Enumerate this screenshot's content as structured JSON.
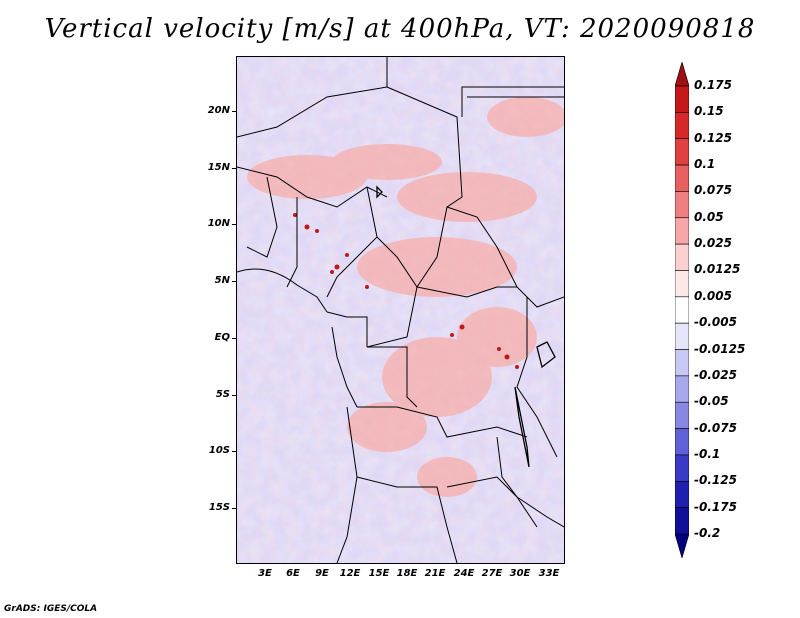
{
  "title": "Vertical velocity [m/s] at 400hPa, VT: 2020090818",
  "footer": "GrADS: IGES/COLA",
  "y_axis_labels": [
    "20N",
    "15N",
    "10N",
    "5N",
    "EQ",
    "5S",
    "10S",
    "15S"
  ],
  "x_axis_labels": [
    "3E",
    "6E",
    "9E",
    "12E",
    "15E",
    "18E",
    "21E",
    "24E",
    "27E",
    "30E",
    "33E"
  ],
  "colorbar": {
    "labels": [
      "0.175",
      "0.15",
      "0.125",
      "0.1",
      "0.075",
      "0.05",
      "0.025",
      "0.0125",
      "0.005",
      "-0.005",
      "-0.0125",
      "-0.025",
      "-0.05",
      "-0.075",
      "-0.1",
      "-0.125",
      "-0.175",
      "-0.2"
    ],
    "colors": [
      "#a01010",
      "#c41818",
      "#d62828",
      "#e04040",
      "#e86060",
      "#f08080",
      "#f6a8a8",
      "#fad0d0",
      "#fde8e8",
      "#ffffff",
      "#e6e6fb",
      "#c8c8f4",
      "#a8a8ec",
      "#8888e2",
      "#6060d8",
      "#3a3ac8",
      "#2020b0",
      "#10109a",
      "#000080"
    ]
  }
}
